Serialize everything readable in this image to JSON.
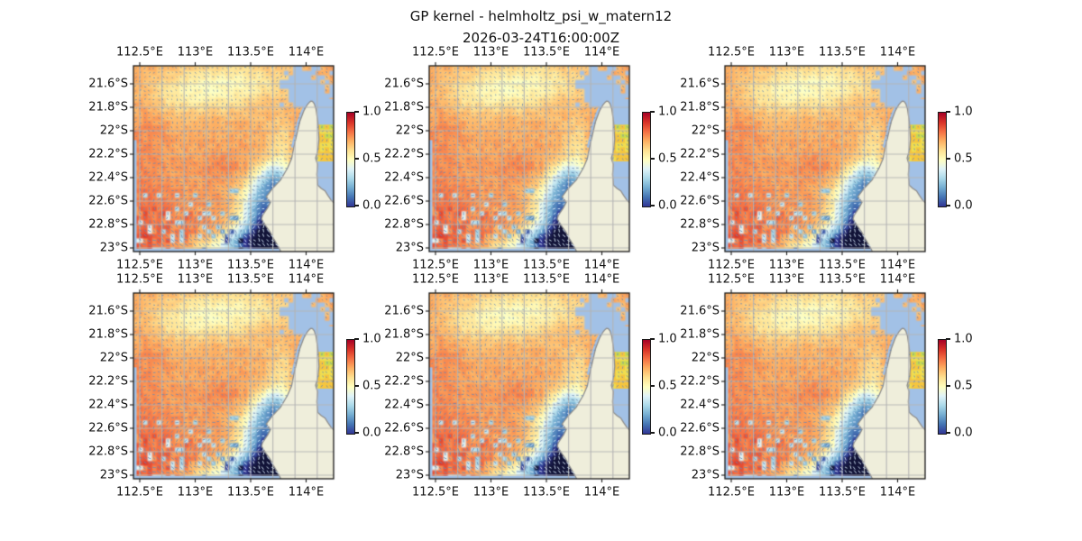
{
  "chart_data": {
    "type": "heatmap",
    "title": "GP kernel - helmholtz_psi_w_matern12",
    "subtitle": "2026-03-24T16:00:00Z",
    "panel_grid": {
      "rows": 2,
      "cols": 3,
      "count": 6,
      "note": "six visually identical coastal map panels"
    },
    "x_tick_labels": [
      "112.5°E",
      "113°E",
      "113.5°E",
      "114°E"
    ],
    "y_tick_labels": [
      "21.6°S",
      "21.8°S",
      "22°S",
      "22.2°S",
      "22.4°S",
      "22.6°S",
      "22.8°S",
      "23°S"
    ],
    "lon_range_deg": [
      112.44,
      114.25
    ],
    "lat_range_deg": [
      -23.05,
      -21.44
    ],
    "graticule_spacing_deg": 0.2,
    "legend_position": "right",
    "grid_on": true,
    "colorbar": {
      "tick_labels": [
        "1.0",
        "0.5",
        "0.0"
      ],
      "vmin": 0.0,
      "vmax": 1.0,
      "colormap": "RdYlBu_r"
    },
    "field": {
      "base_value": 0.7,
      "noise_amp": 0.06,
      "value_clamp": [
        -0.13,
        0.9
      ],
      "blobs": [
        [
          0.42,
          0.12,
          0.2,
          0.085,
          -0.145
        ],
        [
          0.22,
          0.16,
          0.13,
          0.07,
          -0.07
        ],
        [
          0.6,
          0.07,
          0.18,
          0.06,
          -0.06
        ],
        [
          0.74,
          0.42,
          0.055,
          0.1,
          -0.095
        ],
        [
          0.82,
          0.4,
          0.025,
          0.09,
          0.07
        ],
        [
          0.05,
          0.55,
          0.09,
          0.3,
          0.055
        ],
        [
          0.44,
          0.54,
          0.1,
          0.075,
          0.05
        ],
        [
          0.18,
          0.88,
          0.2,
          0.14,
          0.075
        ],
        [
          0.03,
          0.97,
          0.08,
          0.07,
          0.05
        ],
        [
          0.73,
          0.95,
          0.105,
          0.085,
          -0.92
        ],
        [
          0.64,
          0.76,
          0.07,
          0.1,
          -0.5
        ],
        [
          0.56,
          0.95,
          0.075,
          0.06,
          -0.38
        ],
        [
          0.72,
          0.88,
          0.05,
          0.075,
          -0.4
        ],
        [
          0.71,
          0.62,
          0.06,
          0.07,
          -0.42
        ],
        [
          0.42,
          0.99,
          0.1,
          0.05,
          -0.22
        ]
      ]
    },
    "coast": {
      "land_polygon_uv": [
        [
          0.75,
          1.03
        ],
        [
          0.725,
          0.975
        ],
        [
          0.7,
          0.93
        ],
        [
          0.683,
          0.895
        ],
        [
          0.663,
          0.865
        ],
        [
          0.64,
          0.825
        ],
        [
          0.645,
          0.805
        ],
        [
          0.67,
          0.765
        ],
        [
          0.685,
          0.735
        ],
        [
          0.664,
          0.705
        ],
        [
          0.695,
          0.66
        ],
        [
          0.735,
          0.615
        ],
        [
          0.77,
          0.55
        ],
        [
          0.79,
          0.5
        ],
        [
          0.801,
          0.44
        ],
        [
          0.816,
          0.37
        ],
        [
          0.831,
          0.3
        ],
        [
          0.851,
          0.243
        ],
        [
          0.868,
          0.21
        ],
        [
          0.879,
          0.196
        ],
        [
          0.886,
          0.19
        ],
        [
          0.894,
          0.191
        ],
        [
          0.903,
          0.203
        ],
        [
          0.912,
          0.232
        ],
        [
          0.921,
          0.3
        ],
        [
          0.927,
          0.395
        ],
        [
          0.921,
          0.455
        ],
        [
          0.91,
          0.498
        ],
        [
          0.92,
          0.532
        ],
        [
          0.916,
          0.585
        ],
        [
          0.921,
          0.643
        ],
        [
          0.937,
          0.659
        ],
        [
          0.957,
          0.673
        ],
        [
          0.971,
          0.697
        ],
        [
          0.988,
          0.724
        ],
        [
          1.03,
          0.765
        ],
        [
          1.03,
          1.03
        ]
      ],
      "gulf_polygon_uv": [
        [
          0.889,
          0.196
        ],
        [
          0.903,
          0.206
        ],
        [
          0.913,
          0.235
        ],
        [
          0.922,
          0.3
        ],
        [
          0.928,
          0.395
        ],
        [
          0.922,
          0.455
        ],
        [
          0.911,
          0.498
        ],
        [
          0.921,
          0.532
        ],
        [
          0.917,
          0.585
        ],
        [
          0.922,
          0.643
        ],
        [
          0.938,
          0.659
        ],
        [
          0.958,
          0.674
        ],
        [
          0.972,
          0.698
        ],
        [
          0.989,
          0.725
        ],
        [
          1.02,
          0.755
        ],
        [
          1.02,
          0.18
        ],
        [
          0.9,
          0.18
        ]
      ],
      "gulf_cells_rect_uv": [
        0.915,
        0.325,
        1.005,
        0.505
      ],
      "coast_fringe_uv": [
        [
          0.871,
          0.196
        ],
        [
          0.86,
          0.21
        ],
        [
          0.843,
          0.243
        ],
        [
          0.823,
          0.3
        ],
        [
          0.808,
          0.37
        ],
        [
          0.793,
          0.44
        ]
      ]
    },
    "quiver": {
      "nx": 44,
      "ny": 41,
      "style": "short oriented strokes at each data cell"
    }
  },
  "colors": {
    "ocean": "#a2c1e6",
    "land": "#efeedb",
    "coastline": "#8f8f8f",
    "gridline": "#b4b4b4",
    "frame": "#1a1a1a",
    "arrow_dark": "rgba(108,138,176,0.85)",
    "arrow_light": "rgba(212,230,248,0.95)",
    "gulf_cell_yellow": "#f0dd4f",
    "gulf_cell_green": "#cbdb4e",
    "colormap_anchors": [
      [
        -0.15,
        "#0d0f2a"
      ],
      [
        0.0,
        "#313695"
      ],
      [
        0.1,
        "#4575b4"
      ],
      [
        0.2,
        "#74add1"
      ],
      [
        0.3,
        "#abd9e9"
      ],
      [
        0.4,
        "#e0f3f8"
      ],
      [
        0.5,
        "#ffffbf"
      ],
      [
        0.6,
        "#fee090"
      ],
      [
        0.7,
        "#fdae61"
      ],
      [
        0.8,
        "#f46d43"
      ],
      [
        0.9,
        "#d73027"
      ],
      [
        1.0,
        "#a50026"
      ]
    ]
  }
}
